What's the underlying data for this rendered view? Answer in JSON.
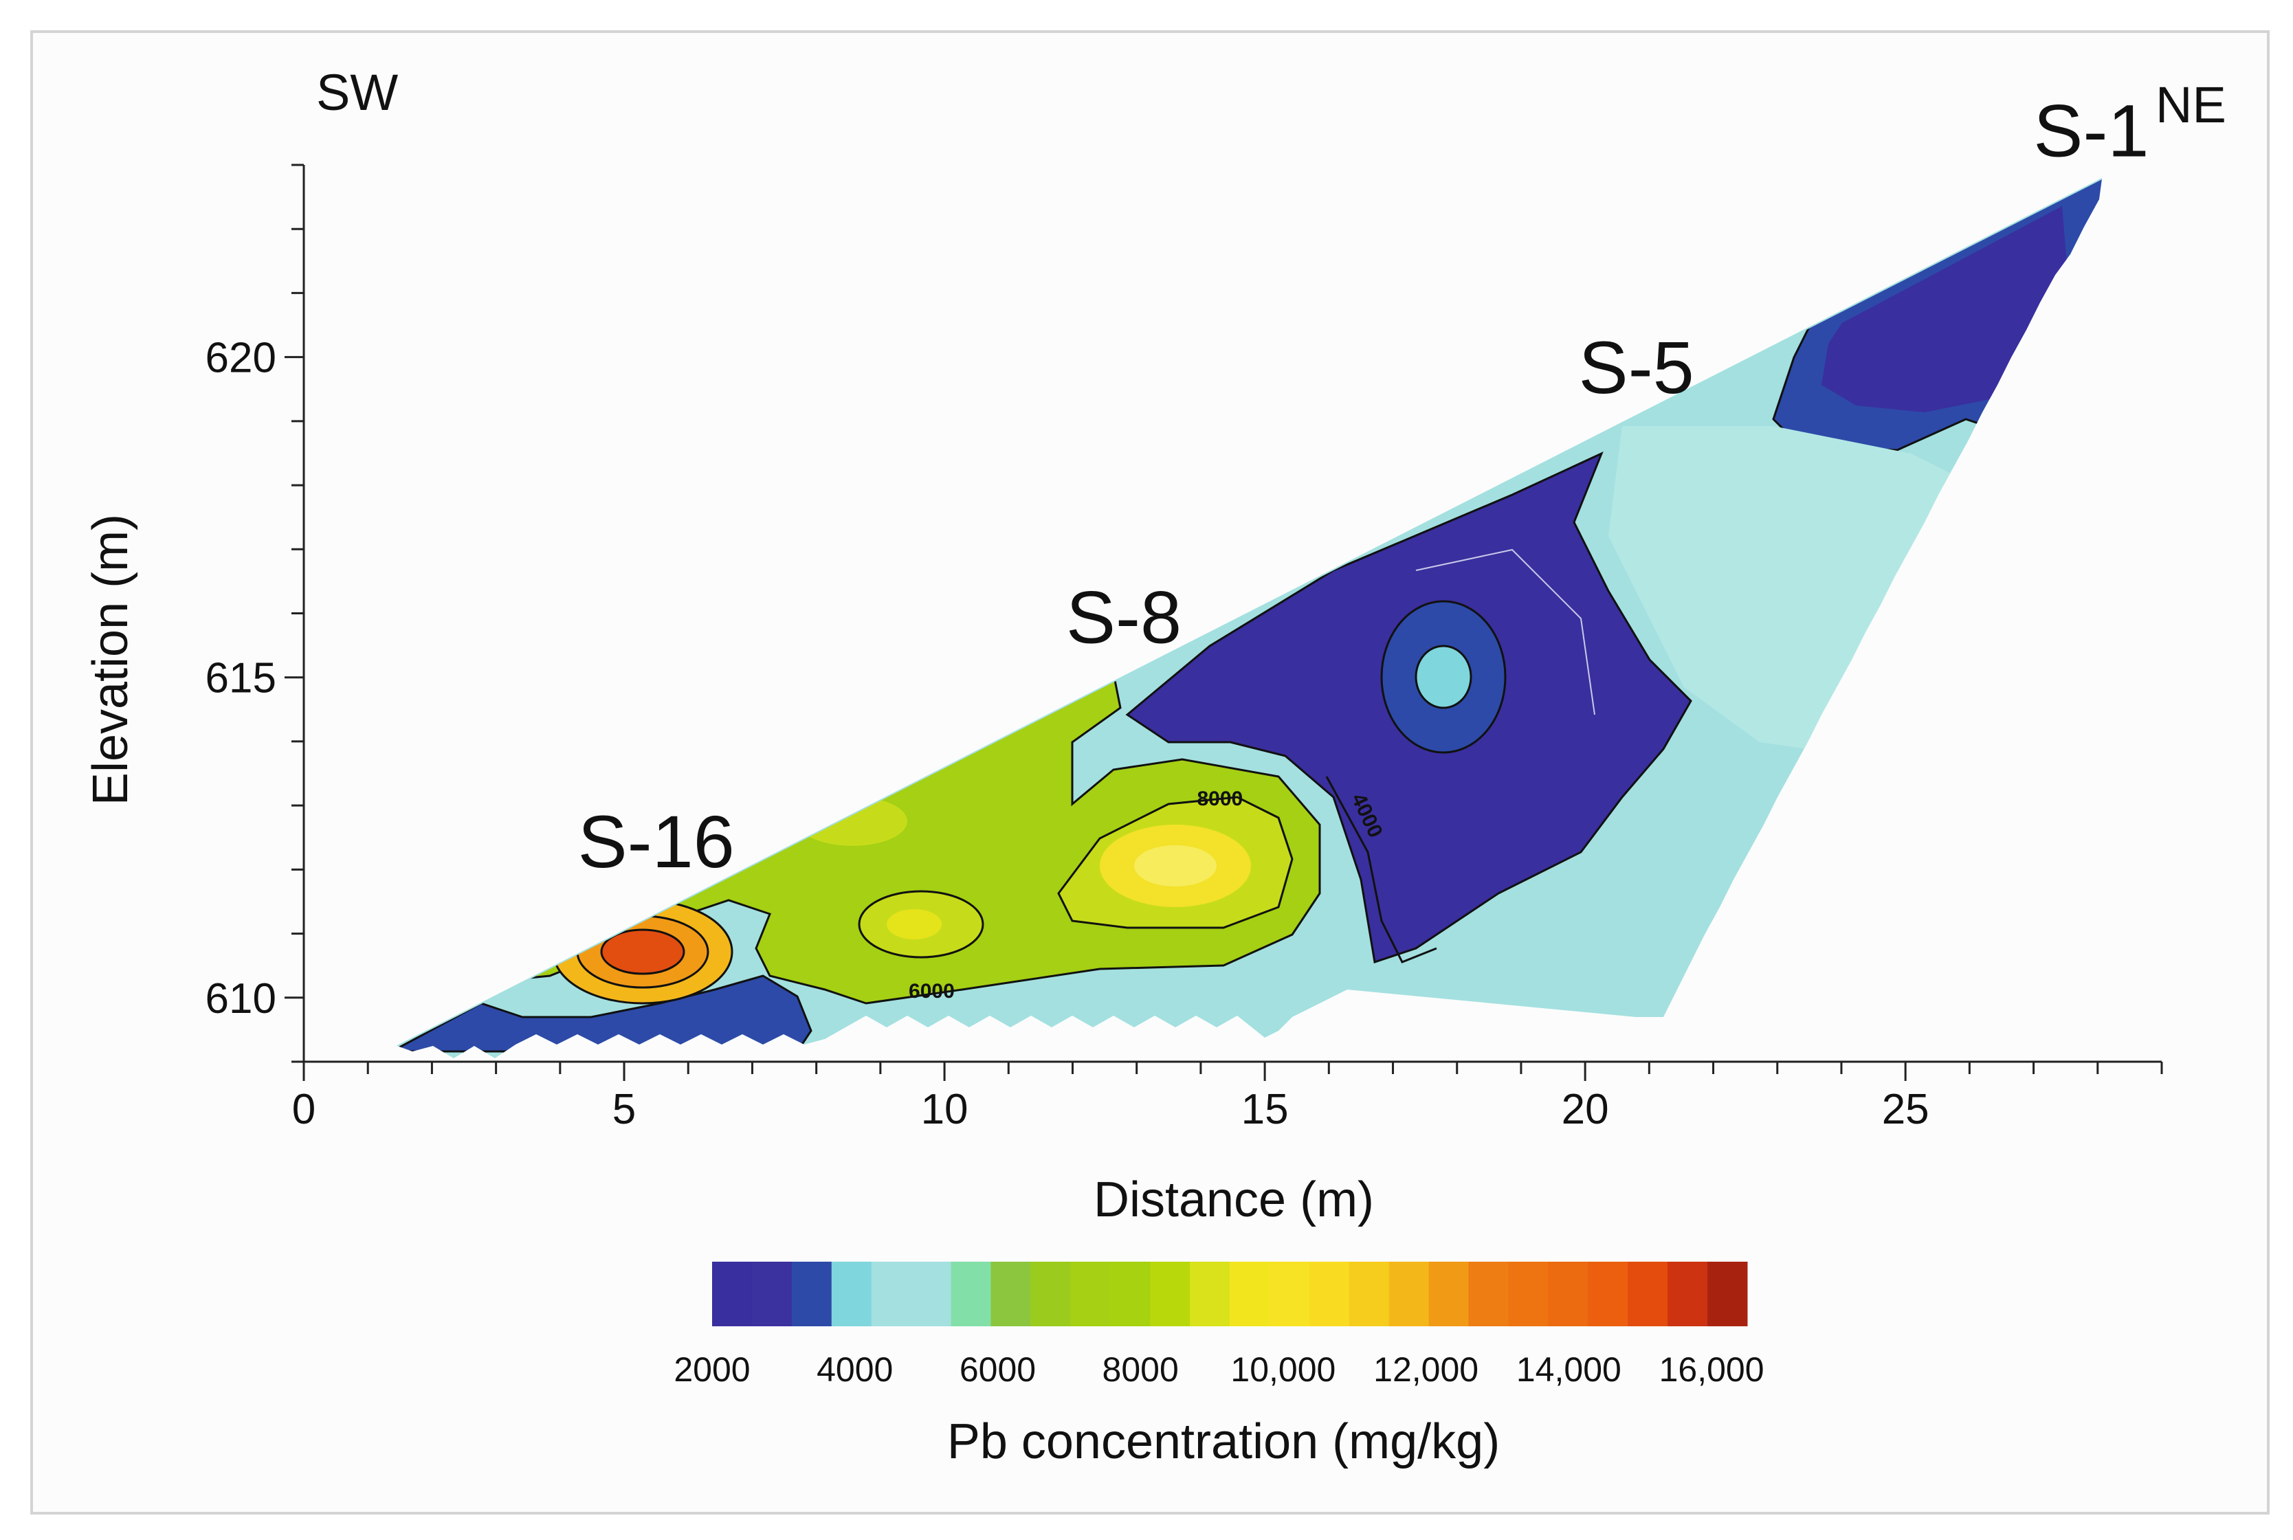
{
  "chart_data": {
    "type": "contour",
    "title": "",
    "xlabel": "Distance (m)",
    "ylabel": "Elevation (m)",
    "xlim": [
      0,
      29
    ],
    "ylim": [
      609,
      623
    ],
    "x_ticks": [
      0,
      5,
      10,
      15,
      20,
      25
    ],
    "x_tick_labels": [
      "0",
      "5",
      "10",
      "15",
      "20",
      "25"
    ],
    "y_ticks": [
      610,
      615,
      620
    ],
    "y_tick_labels": [
      "610",
      "615",
      "620"
    ],
    "direction_labels": {
      "left": "SW",
      "right": "NE"
    },
    "sample_points": [
      {
        "label": "S-16",
        "x": 5.5,
        "y": 611.5
      },
      {
        "label": "S-8",
        "x": 12.8,
        "y": 615.0
      },
      {
        "label": "S-5",
        "x": 20.8,
        "y": 618.9
      },
      {
        "label": "S-1",
        "x": 27.9,
        "y": 622.6
      }
    ],
    "contour_labels": [
      {
        "text": "8000",
        "x": 14.3,
        "y": 613.0
      },
      {
        "text": "6000",
        "x": 9.8,
        "y": 610.0
      },
      {
        "text": "4000",
        "x": 16.5,
        "y": 612.8
      }
    ],
    "surface_profile": [
      [
        1.5,
        609.3
      ],
      [
        28.0,
        622.7
      ]
    ],
    "colorbar": {
      "label": "Pb concentration (mg/kg)",
      "range": [
        2000,
        16500
      ],
      "tick_values": [
        2000,
        4000,
        6000,
        8000,
        10000,
        12000,
        14000,
        16000
      ],
      "tick_labels": [
        "2000",
        "4000",
        "6000",
        "8000",
        "10,000",
        "12,000",
        "14,000",
        "16,000"
      ],
      "colors": [
        "#3a2f9e",
        "#3b319f",
        "#2d4aa8",
        "#7fd6dd",
        "#a4e0e0",
        "#a4e0e0",
        "#82dfa8",
        "#8cc63f",
        "#9bcb1c",
        "#a5d013",
        "#a7d20f",
        "#b8d80b",
        "#d9e21a",
        "#f2e51e",
        "#f7e324",
        "#f9dc22",
        "#f6cd1d",
        "#f4b71a",
        "#f19a16",
        "#ee7d14",
        "#ee7411",
        "#ec6a10",
        "#eb5f0e",
        "#e34c0c",
        "#cd3310",
        "#a8230f"
      ]
    },
    "regions": [
      {
        "name": "upper-right-low-zone",
        "level": "2000-4000",
        "color": "#3a2f9e"
      },
      {
        "name": "central-low-zone",
        "level": "2000-4000",
        "color": "#3a2f9e"
      },
      {
        "name": "central-hotspot",
        "level": "10000",
        "color": "#f3e12a"
      },
      {
        "name": "s16-hotspot",
        "level": "14000-15000",
        "color": "#e24d10"
      },
      {
        "name": "near-surface-band",
        "level": "4000-6000",
        "color": "#a4e0e0"
      }
    ]
  }
}
